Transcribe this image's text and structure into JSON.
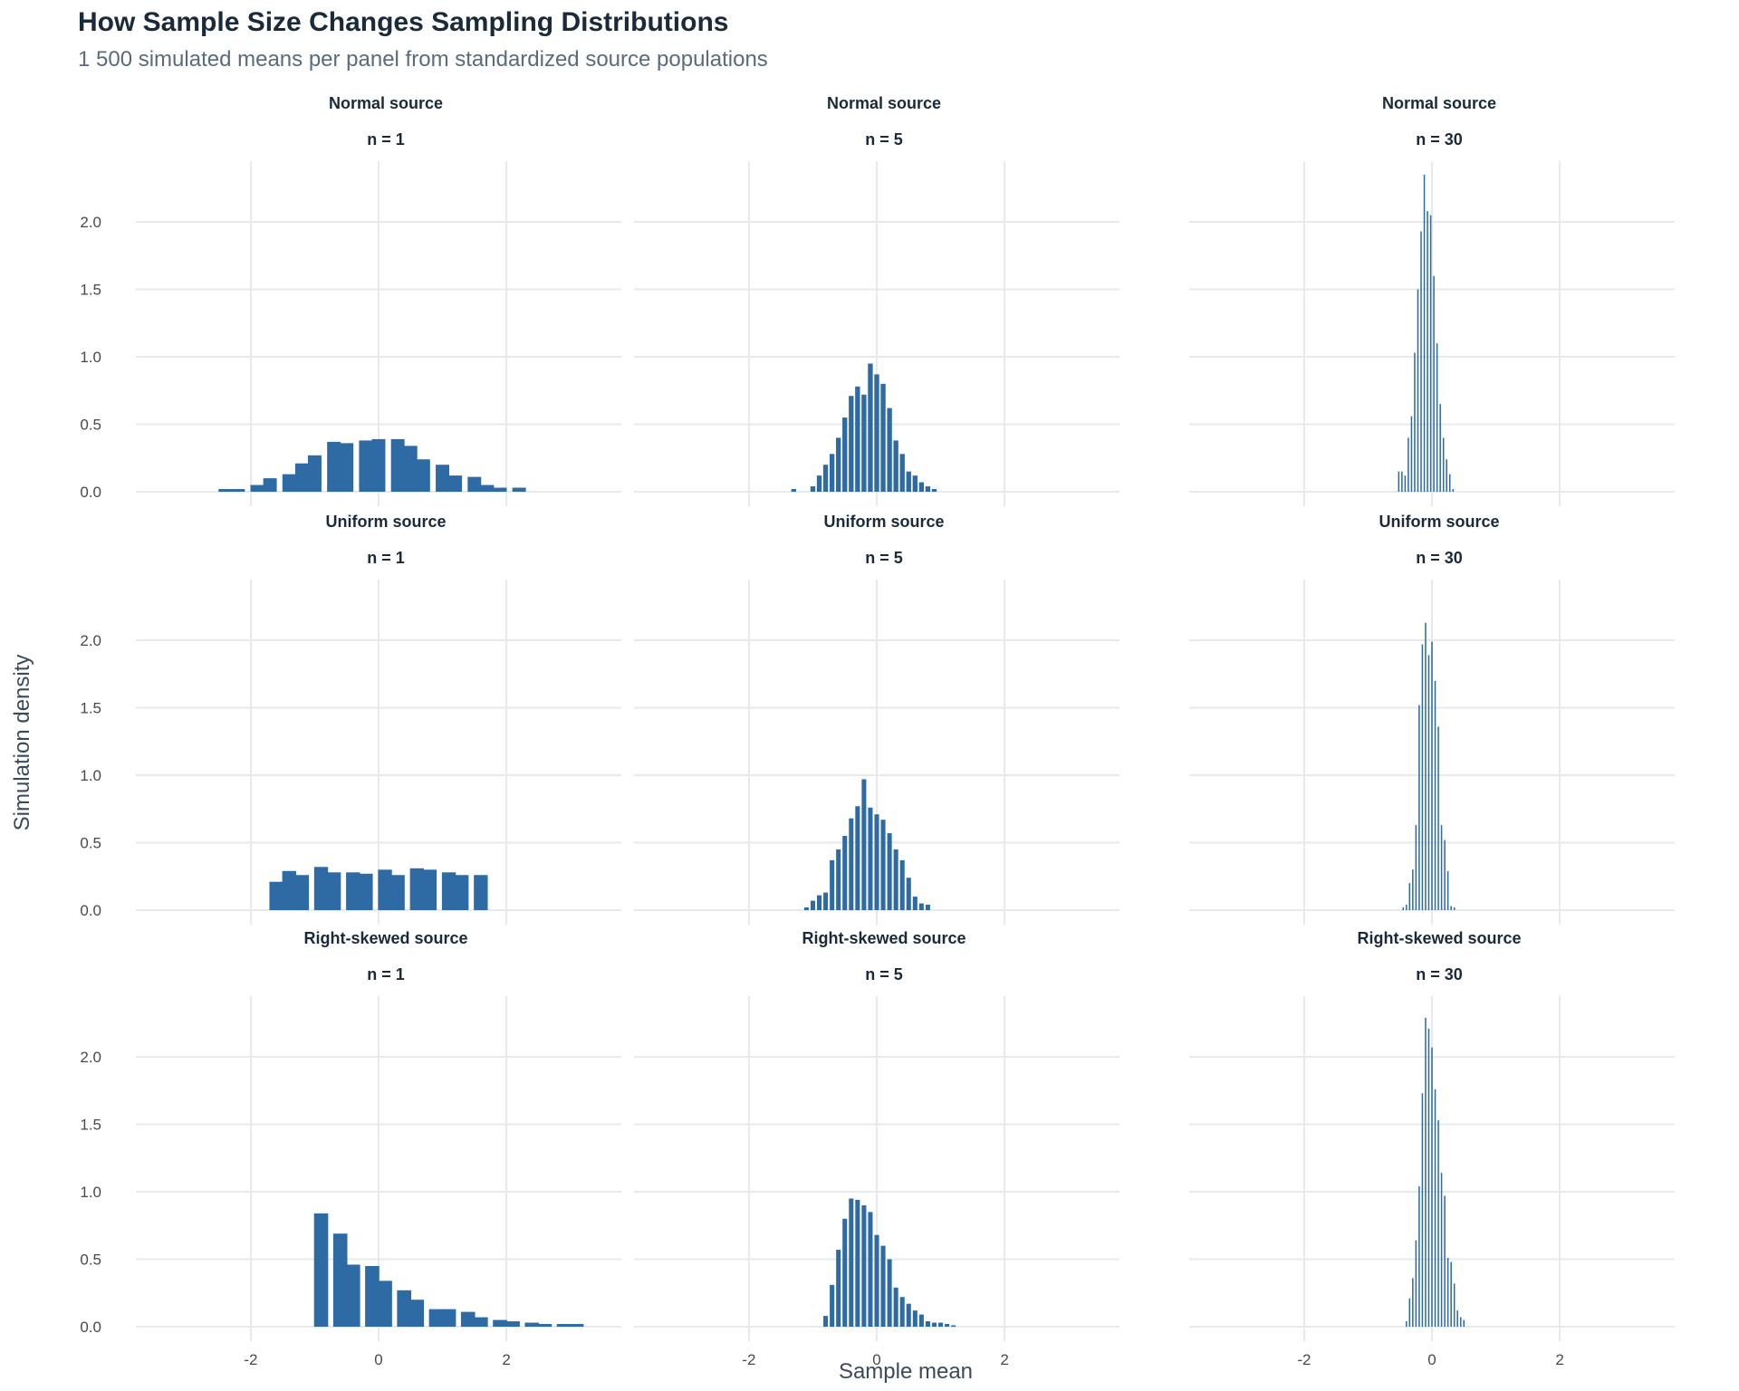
{
  "title": "How Sample Size Changes Sampling Distributions",
  "subtitle": "1 500 simulated means per panel from standardized source populations",
  "chart_data": {
    "type": "bar",
    "xlabel": "Sample mean",
    "ylabel": "Simulation density",
    "xlim": [
      -3.8,
      3.8
    ],
    "ylim": [
      0,
      2.45
    ],
    "x_ticks": [
      -2,
      0,
      2
    ],
    "x_tick_labels": [
      "-2",
      "0",
      "2"
    ],
    "y_ticks": [
      0,
      0.5,
      1,
      1.5,
      2
    ],
    "y_tick_labels": [
      "0.0",
      "0.5",
      "1.0",
      "1.5",
      "2.0"
    ],
    "grid": true,
    "bar_color": "#2e6aa3",
    "panels": [
      {
        "source": "Normal source",
        "n": "n = 1",
        "x": [
          -2.4,
          -2.2,
          -1.9,
          -1.7,
          -1.4,
          -1.2,
          -1.0,
          -0.7,
          -0.5,
          -0.2,
          0.0,
          0.3,
          0.5,
          0.7,
          1.0,
          1.2,
          1.5,
          1.7,
          1.9,
          2.2,
          2.4
        ],
        "values": [
          0.02,
          0.02,
          0.05,
          0.1,
          0.13,
          0.21,
          0.27,
          0.37,
          0.36,
          0.38,
          0.39,
          0.39,
          0.34,
          0.24,
          0.2,
          0.12,
          0.11,
          0.05,
          0.03,
          0.03,
          0.0
        ]
      },
      {
        "source": "Normal source",
        "n": "n = 5",
        "x": [
          -1.3,
          -1.2,
          -1.0,
          -0.9,
          -0.8,
          -0.7,
          -0.6,
          -0.5,
          -0.4,
          -0.3,
          -0.2,
          -0.1,
          0.0,
          0.1,
          0.2,
          0.3,
          0.4,
          0.5,
          0.6,
          0.7,
          0.8,
          0.9,
          1.0,
          1.1,
          1.2
        ],
        "values": [
          0.02,
          0.0,
          0.04,
          0.12,
          0.2,
          0.28,
          0.4,
          0.55,
          0.71,
          0.78,
          0.72,
          0.95,
          0.87,
          0.8,
          0.62,
          0.38,
          0.28,
          0.15,
          0.12,
          0.07,
          0.04,
          0.02,
          0.0,
          0.0,
          0.0
        ]
      },
      {
        "source": "Normal source",
        "n": "n = 30",
        "x": [
          -0.52,
          -0.47,
          -0.42,
          -0.37,
          -0.32,
          -0.27,
          -0.22,
          -0.17,
          -0.12,
          -0.07,
          -0.02,
          0.03,
          0.08,
          0.13,
          0.18,
          0.23,
          0.28,
          0.33,
          0.38,
          0.43,
          0.48,
          0.53,
          0.58
        ],
        "values": [
          0.15,
          0.15,
          0.12,
          0.4,
          0.56,
          1.03,
          1.5,
          1.93,
          2.35,
          2.08,
          2.05,
          1.6,
          1.1,
          0.65,
          0.4,
          0.24,
          0.13,
          0.02,
          0.0,
          0.0,
          0.0,
          0.0,
          0.0
        ]
      },
      {
        "source": "Uniform source",
        "n": "n = 1",
        "x": [
          -1.6,
          -1.4,
          -1.2,
          -0.9,
          -0.7,
          -0.4,
          -0.2,
          0.1,
          0.3,
          0.6,
          0.8,
          1.1,
          1.3,
          1.6
        ],
        "values": [
          0.21,
          0.29,
          0.26,
          0.32,
          0.28,
          0.28,
          0.27,
          0.3,
          0.26,
          0.31,
          0.3,
          0.28,
          0.26,
          0.26
        ]
      },
      {
        "source": "Uniform source",
        "n": "n = 5",
        "x": [
          -1.2,
          -1.1,
          -1.0,
          -0.9,
          -0.8,
          -0.7,
          -0.6,
          -0.5,
          -0.4,
          -0.3,
          -0.2,
          -0.1,
          0.0,
          0.1,
          0.2,
          0.3,
          0.4,
          0.5,
          0.6,
          0.7,
          0.8,
          0.9,
          1.0,
          1.1
        ],
        "values": [
          0.0,
          0.02,
          0.07,
          0.11,
          0.13,
          0.37,
          0.45,
          0.55,
          0.68,
          0.77,
          0.97,
          0.76,
          0.71,
          0.67,
          0.57,
          0.45,
          0.37,
          0.24,
          0.1,
          0.05,
          0.04,
          0.0,
          0.0,
          0.0
        ]
      },
      {
        "source": "Uniform source",
        "n": "n = 30",
        "x": [
          -0.55,
          -0.5,
          -0.45,
          -0.4,
          -0.35,
          -0.3,
          -0.25,
          -0.2,
          -0.15,
          -0.1,
          -0.05,
          0.0,
          0.05,
          0.1,
          0.15,
          0.2,
          0.25,
          0.3,
          0.35,
          0.4,
          0.45,
          0.5,
          0.55,
          0.6
        ],
        "values": [
          0.0,
          0.0,
          0.02,
          0.04,
          0.2,
          0.3,
          0.63,
          1.52,
          1.97,
          2.13,
          1.89,
          1.99,
          1.7,
          1.36,
          0.63,
          0.52,
          0.29,
          0.03,
          0.02,
          0.0,
          0.0,
          0.0,
          0.0,
          0.0
        ]
      },
      {
        "source": "Right-skewed source",
        "n": "n = 1",
        "x": [
          -0.9,
          -0.6,
          -0.4,
          -0.1,
          0.1,
          0.4,
          0.6,
          0.9,
          1.1,
          1.4,
          1.6,
          1.9,
          2.1,
          2.4,
          2.6,
          2.9,
          3.1
        ],
        "values": [
          0.84,
          0.69,
          0.46,
          0.45,
          0.34,
          0.27,
          0.2,
          0.13,
          0.13,
          0.11,
          0.07,
          0.05,
          0.04,
          0.03,
          0.02,
          0.02,
          0.02
        ]
      },
      {
        "source": "Right-skewed source",
        "n": "n = 5",
        "x": [
          -0.8,
          -0.7,
          -0.6,
          -0.5,
          -0.4,
          -0.3,
          -0.2,
          -0.1,
          0.0,
          0.1,
          0.2,
          0.3,
          0.4,
          0.5,
          0.6,
          0.7,
          0.8,
          0.9,
          1.0,
          1.1,
          1.2,
          1.3,
          1.4,
          1.5,
          1.6
        ],
        "values": [
          0.08,
          0.31,
          0.57,
          0.8,
          0.95,
          0.94,
          0.9,
          0.85,
          0.68,
          0.6,
          0.5,
          0.29,
          0.22,
          0.17,
          0.12,
          0.09,
          0.04,
          0.03,
          0.03,
          0.02,
          0.01,
          0.0,
          0.0,
          0.0,
          0.0
        ]
      },
      {
        "source": "Right-skewed source",
        "n": "n = 30",
        "x": [
          -0.45,
          -0.4,
          -0.35,
          -0.3,
          -0.25,
          -0.2,
          -0.15,
          -0.1,
          -0.05,
          0.0,
          0.05,
          0.1,
          0.15,
          0.2,
          0.25,
          0.3,
          0.35,
          0.4,
          0.45,
          0.5,
          0.55,
          0.6
        ],
        "values": [
          0.0,
          0.04,
          0.21,
          0.36,
          0.64,
          1.04,
          1.73,
          2.29,
          2.21,
          2.07,
          1.76,
          1.53,
          1.14,
          0.97,
          0.51,
          0.48,
          0.32,
          0.12,
          0.07,
          0.05,
          0.0,
          0.0
        ]
      }
    ]
  }
}
